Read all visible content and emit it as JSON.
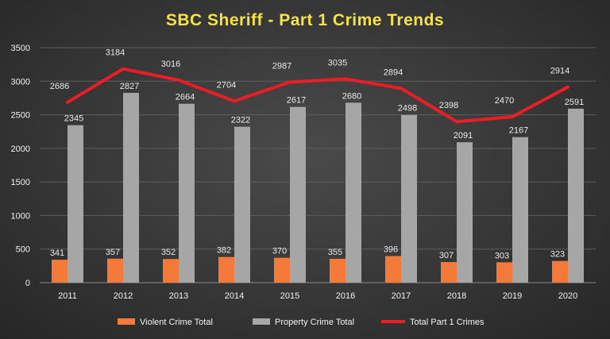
{
  "chart_data": {
    "type": "bar",
    "title": "SBC Sheriff  - Part 1 Crime Trends",
    "categories": [
      "2011",
      "2012",
      "2013",
      "2014",
      "2015",
      "2016",
      "2017",
      "2018",
      "2019",
      "2020"
    ],
    "series": [
      {
        "name": "Violent Crime Total",
        "type": "bar",
        "color": "#f47a3a",
        "values": [
          341,
          357,
          352,
          382,
          370,
          355,
          396,
          307,
          303,
          323
        ]
      },
      {
        "name": "Property Crime Total",
        "type": "bar",
        "color": "#a6a6a6",
        "values": [
          2345,
          2827,
          2664,
          2322,
          2617,
          2680,
          2498,
          2091,
          2167,
          2591
        ]
      },
      {
        "name": "Total Part 1 Crimes",
        "type": "line",
        "color": "#ee1c25",
        "values": [
          2686,
          3184,
          3016,
          2704,
          2987,
          3035,
          2894,
          2398,
          2470,
          2914
        ]
      }
    ],
    "yticks": [
      "0",
      "500",
      "1000",
      "1500",
      "2000",
      "2500",
      "3000",
      "3500"
    ],
    "ylim": [
      0,
      3500
    ],
    "grid": true,
    "legend": "bottom"
  }
}
